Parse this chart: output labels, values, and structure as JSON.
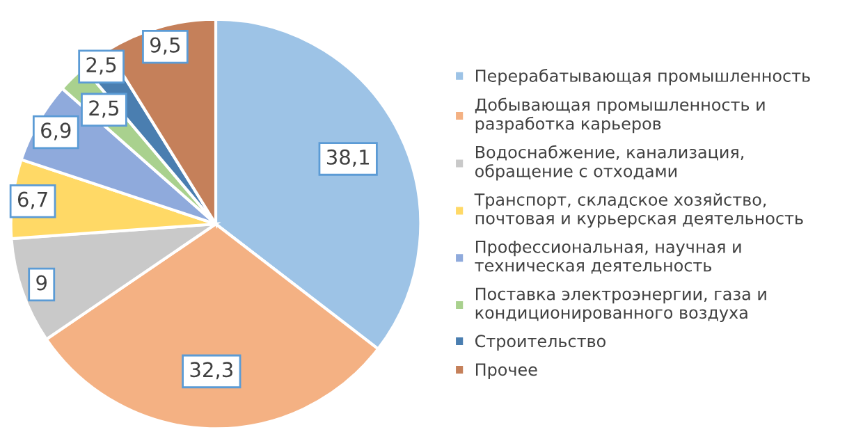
{
  "chart_data": {
    "type": "pie",
    "categories": [
      "Перерабатывающая промышленность",
      "Добывающая промышленность и\nразработка карьеров",
      "Водоснабжение, канализация,\nобращение с отходами",
      "Транспорт, складское хозяйство,\nпочтовая и курьерская деятельность",
      "Профессиональная, научная и\nтехническая деятельность",
      "Поставка электроэнергии, газа и\nкондиционированного воздуха",
      "Строительство",
      "Прочее"
    ],
    "values": [
      38.1,
      32.3,
      9,
      6.7,
      6.9,
      2.5,
      2.5,
      9.5
    ],
    "value_labels": [
      "38,1",
      "32,3",
      "9",
      "6,7",
      "6,9",
      "2,5",
      "2,5",
      "9,5"
    ],
    "colors": [
      "#9dc3e6",
      "#f4b183",
      "#c9c9c9",
      "#ffd966",
      "#8faadc",
      "#a9d18e",
      "#4a7eb0",
      "#c5805a"
    ],
    "legend": "right"
  }
}
